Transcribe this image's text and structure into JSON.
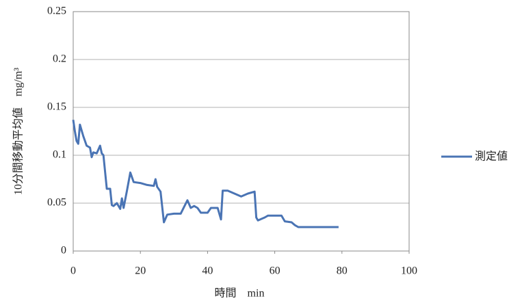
{
  "chart_data": {
    "type": "line",
    "xlabel": "時間　min",
    "ylabel": "10分間移動平均値　mg/m³",
    "xlim": [
      0,
      100
    ],
    "xticks": [
      0,
      20,
      40,
      60,
      80,
      100
    ],
    "ylim": [
      0,
      0.25
    ],
    "yticks": [
      0,
      0.05,
      0.1,
      0.15,
      0.2,
      0.25
    ],
    "grid": true,
    "legend": "right",
    "series": [
      {
        "name": "測定値",
        "color": "#4a74b4",
        "x": [
          0,
          0.5,
          1,
          1.5,
          2,
          3,
          4,
          5,
          5.5,
          6,
          7,
          8,
          8.5,
          9,
          10,
          11,
          11.5,
          12,
          13,
          14,
          14.5,
          15,
          16,
          17,
          18,
          20,
          22,
          24,
          24.5,
          25,
          26,
          26.5,
          27,
          28,
          30,
          32,
          33,
          34,
          35,
          36,
          37,
          38,
          40,
          41,
          43,
          44,
          44.5,
          46,
          48,
          50,
          52,
          54,
          54.5,
          55,
          57,
          58,
          62,
          63,
          65,
          66,
          67,
          70,
          75,
          79
        ],
        "values": [
          0.137,
          0.125,
          0.115,
          0.112,
          0.132,
          0.12,
          0.11,
          0.108,
          0.098,
          0.103,
          0.102,
          0.11,
          0.102,
          0.1,
          0.065,
          0.065,
          0.048,
          0.047,
          0.05,
          0.044,
          0.055,
          0.045,
          0.063,
          0.082,
          0.072,
          0.071,
          0.069,
          0.068,
          0.075,
          0.067,
          0.062,
          0.046,
          0.03,
          0.038,
          0.039,
          0.039,
          0.046,
          0.053,
          0.045,
          0.047,
          0.045,
          0.04,
          0.04,
          0.045,
          0.045,
          0.033,
          0.063,
          0.063,
          0.06,
          0.057,
          0.06,
          0.062,
          0.035,
          0.032,
          0.035,
          0.037,
          0.037,
          0.031,
          0.03,
          0.027,
          0.025,
          0.025,
          0.025,
          0.025
        ]
      }
    ]
  }
}
